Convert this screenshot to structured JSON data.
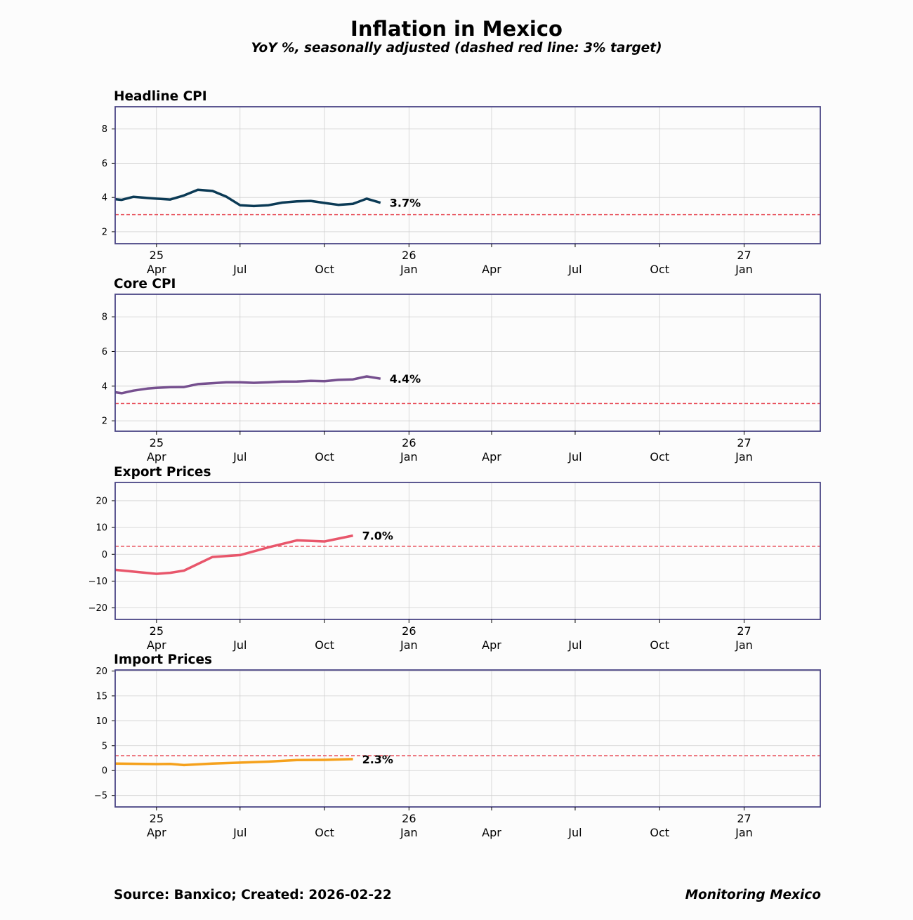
{
  "title": "Inflation in Mexico",
  "subtitle": "YoY %, seasonally adjusted (dashed red line: 3% target)",
  "footer": {
    "source": "Source: Banxico; Created: 2026-02-22",
    "brand": "Monitoring Mexico"
  },
  "colors": {
    "target": "#e8505b",
    "frame": "#4a4585",
    "grid": "#d0d0d0"
  },
  "chart_data": [
    {
      "type": "line",
      "title": "Headline CPI",
      "color": "#0b3a55",
      "ylim": [
        1.3,
        9.3
      ],
      "yticks": [
        2,
        4,
        6,
        8
      ],
      "ytick_labels": [
        "2",
        "4",
        "6",
        "8"
      ],
      "target": 3,
      "xlim": [
        "2025-02-15",
        "2027-03-25"
      ],
      "xticks": [
        {
          "date": "2025-04-01",
          "top": "25",
          "bottom": "Apr"
        },
        {
          "date": "2025-07-01",
          "top": "",
          "bottom": "Jul"
        },
        {
          "date": "2025-10-01",
          "top": "",
          "bottom": "Oct"
        },
        {
          "date": "2026-01-01",
          "top": "26",
          "bottom": "Jan"
        },
        {
          "date": "2026-04-01",
          "top": "",
          "bottom": "Apr"
        },
        {
          "date": "2026-07-01",
          "top": "",
          "bottom": "Jul"
        },
        {
          "date": "2026-10-01",
          "top": "",
          "bottom": "Oct"
        },
        {
          "date": "2027-01-01",
          "top": "27",
          "bottom": "Jan"
        }
      ],
      "end_label": "3.7%",
      "series": [
        {
          "x": [
            "2025-02-15",
            "2025-02-22",
            "2025-03-07",
            "2025-03-22",
            "2025-04-01",
            "2025-04-16",
            "2025-05-01",
            "2025-05-16",
            "2025-06-01",
            "2025-06-16",
            "2025-07-01",
            "2025-07-16",
            "2025-08-01",
            "2025-08-16",
            "2025-09-01",
            "2025-09-16",
            "2025-10-01",
            "2025-10-16",
            "2025-11-01",
            "2025-11-16",
            "2025-12-01"
          ],
          "y": [
            3.9,
            3.86,
            4.04,
            3.97,
            3.93,
            3.88,
            4.12,
            4.45,
            4.38,
            4.05,
            3.55,
            3.5,
            3.55,
            3.7,
            3.77,
            3.8,
            3.68,
            3.57,
            3.63,
            3.93,
            3.69
          ]
        }
      ]
    },
    {
      "type": "line",
      "title": "Core CPI",
      "color": "#76508f",
      "ylim": [
        1.4,
        9.3
      ],
      "yticks": [
        2,
        4,
        6,
        8
      ],
      "ytick_labels": [
        "2",
        "4",
        "6",
        "8"
      ],
      "target": 3,
      "xlim": [
        "2025-02-15",
        "2027-03-25"
      ],
      "xticks": [
        {
          "date": "2025-04-01",
          "top": "25",
          "bottom": "Apr"
        },
        {
          "date": "2025-07-01",
          "top": "",
          "bottom": "Jul"
        },
        {
          "date": "2025-10-01",
          "top": "",
          "bottom": "Oct"
        },
        {
          "date": "2026-01-01",
          "top": "26",
          "bottom": "Jan"
        },
        {
          "date": "2026-04-01",
          "top": "",
          "bottom": "Apr"
        },
        {
          "date": "2026-07-01",
          "top": "",
          "bottom": "Jul"
        },
        {
          "date": "2026-10-01",
          "top": "",
          "bottom": "Oct"
        },
        {
          "date": "2027-01-01",
          "top": "27",
          "bottom": "Jan"
        }
      ],
      "end_label": "4.4%",
      "series": [
        {
          "x": [
            "2025-02-15",
            "2025-02-22",
            "2025-03-07",
            "2025-03-22",
            "2025-04-01",
            "2025-04-16",
            "2025-05-01",
            "2025-05-16",
            "2025-06-01",
            "2025-06-16",
            "2025-07-01",
            "2025-07-16",
            "2025-08-01",
            "2025-08-16",
            "2025-09-01",
            "2025-09-16",
            "2025-10-01",
            "2025-10-16",
            "2025-11-01",
            "2025-11-16",
            "2025-12-01"
          ],
          "y": [
            3.65,
            3.59,
            3.74,
            3.86,
            3.9,
            3.94,
            3.95,
            4.12,
            4.17,
            4.22,
            4.22,
            4.19,
            4.22,
            4.26,
            4.27,
            4.31,
            4.29,
            4.36,
            4.39,
            4.56,
            4.43
          ]
        }
      ]
    },
    {
      "type": "line",
      "title": "Export Prices",
      "color": "#e8566b",
      "ylim": [
        -24.3,
        26.8
      ],
      "yticks": [
        -20,
        -10,
        0,
        10,
        20
      ],
      "ytick_labels": [
        "−20",
        "−10",
        "0",
        "10",
        "20"
      ],
      "target": 3,
      "xlim": [
        "2025-02-15",
        "2027-03-25"
      ],
      "xticks": [
        {
          "date": "2025-04-01",
          "top": "25",
          "bottom": "Apr"
        },
        {
          "date": "2025-07-01",
          "top": "",
          "bottom": "Jul"
        },
        {
          "date": "2025-10-01",
          "top": "",
          "bottom": "Oct"
        },
        {
          "date": "2026-01-01",
          "top": "26",
          "bottom": "Jan"
        },
        {
          "date": "2026-04-01",
          "top": "",
          "bottom": "Apr"
        },
        {
          "date": "2026-07-01",
          "top": "",
          "bottom": "Jul"
        },
        {
          "date": "2026-10-01",
          "top": "",
          "bottom": "Oct"
        },
        {
          "date": "2027-01-01",
          "top": "27",
          "bottom": "Jan"
        }
      ],
      "end_label": "7.0%",
      "series": [
        {
          "x": [
            "2025-02-15",
            "2025-04-01",
            "2025-04-16",
            "2025-05-01",
            "2025-06-01",
            "2025-07-01",
            "2025-08-01",
            "2025-09-01",
            "2025-10-01",
            "2025-11-01"
          ],
          "y": [
            -5.8,
            -7.3,
            -6.9,
            -6.1,
            -1.0,
            -0.3,
            2.6,
            5.2,
            4.8,
            7.0
          ]
        }
      ]
    },
    {
      "type": "line",
      "title": "Import Prices",
      "color": "#f5a11c",
      "ylim": [
        -7.3,
        20.2
      ],
      "yticks": [
        -5,
        0,
        5,
        10,
        15,
        20
      ],
      "ytick_labels": [
        "−5",
        "0",
        "5",
        "10",
        "15",
        "20"
      ],
      "target": 3,
      "xlim": [
        "2025-02-15",
        "2027-03-25"
      ],
      "xticks": [
        {
          "date": "2025-04-01",
          "top": "25",
          "bottom": "Apr"
        },
        {
          "date": "2025-07-01",
          "top": "",
          "bottom": "Jul"
        },
        {
          "date": "2025-10-01",
          "top": "",
          "bottom": "Oct"
        },
        {
          "date": "2026-01-01",
          "top": "26",
          "bottom": "Jan"
        },
        {
          "date": "2026-04-01",
          "top": "",
          "bottom": "Apr"
        },
        {
          "date": "2026-07-01",
          "top": "",
          "bottom": "Jul"
        },
        {
          "date": "2026-10-01",
          "top": "",
          "bottom": "Oct"
        },
        {
          "date": "2027-01-01",
          "top": "27",
          "bottom": "Jan"
        }
      ],
      "end_label": "2.3%",
      "series": [
        {
          "x": [
            "2025-02-15",
            "2025-04-01",
            "2025-04-16",
            "2025-05-01",
            "2025-06-01",
            "2025-07-01",
            "2025-08-01",
            "2025-09-01",
            "2025-10-01",
            "2025-11-01"
          ],
          "y": [
            1.4,
            1.3,
            1.35,
            1.1,
            1.4,
            1.6,
            1.8,
            2.1,
            2.15,
            2.3
          ]
        }
      ]
    }
  ]
}
